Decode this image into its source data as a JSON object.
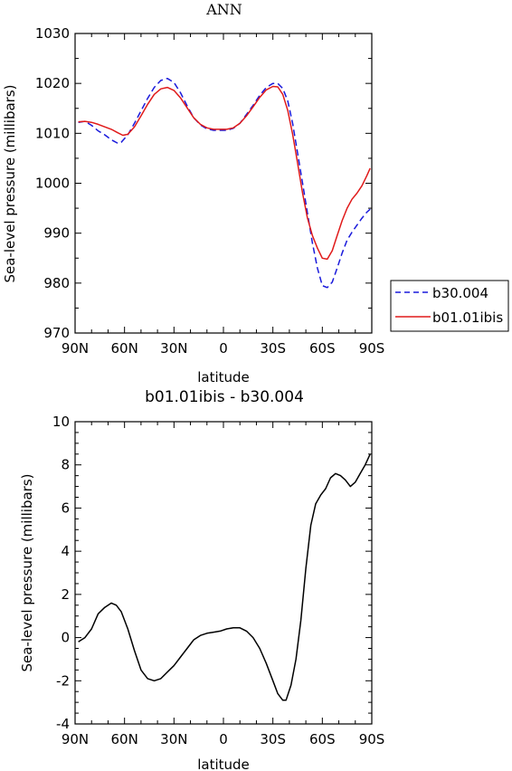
{
  "chart_data": [
    {
      "type": "line",
      "title": "ANN",
      "xlabel": "latitude",
      "ylabel": "Sea-level pressure (millibars)",
      "xlim": [
        90,
        -90
      ],
      "ylim": [
        970,
        1030
      ],
      "x_ticks": [
        90,
        60,
        30,
        0,
        -30,
        -60,
        -90
      ],
      "x_tick_labels": [
        "90N",
        "60N",
        "30N",
        "0",
        "30S",
        "60S",
        "90S"
      ],
      "y_ticks": [
        970,
        980,
        990,
        1000,
        1010,
        1020,
        1030
      ],
      "y_tick_labels": [
        "970",
        "980",
        "990",
        "1000",
        "1010",
        "1020",
        "1030"
      ],
      "legend_position": "right",
      "series": [
        {
          "name": "b30.004",
          "color": "#1a1adb",
          "dash": "dashed",
          "points": [
            [
              88,
              1012.2
            ],
            [
              84,
              1012.4
            ],
            [
              80,
              1011.6
            ],
            [
              76,
              1010.5
            ],
            [
              72,
              1009.7
            ],
            [
              68,
              1008.7
            ],
            [
              64,
              1008.0
            ],
            [
              62,
              1008.2
            ],
            [
              58,
              1009.7
            ],
            [
              54,
              1012.0
            ],
            [
              50,
              1014.5
            ],
            [
              46,
              1017.0
            ],
            [
              42,
              1019.2
            ],
            [
              38,
              1020.6
            ],
            [
              34,
              1021.0
            ],
            [
              30,
              1020.2
            ],
            [
              26,
              1018.1
            ],
            [
              22,
              1015.5
            ],
            [
              18,
              1013.1
            ],
            [
              14,
              1011.7
            ],
            [
              10,
              1010.9
            ],
            [
              6,
              1010.6
            ],
            [
              2,
              1010.6
            ],
            [
              -2,
              1010.6
            ],
            [
              -6,
              1011.0
            ],
            [
              -10,
              1012.0
            ],
            [
              -14,
              1013.8
            ],
            [
              -18,
              1015.6
            ],
            [
              -22,
              1017.6
            ],
            [
              -26,
              1019.2
            ],
            [
              -30,
              1020.0
            ],
            [
              -33,
              1020.0
            ],
            [
              -36,
              1019.0
            ],
            [
              -39,
              1016.5
            ],
            [
              -42,
              1012.0
            ],
            [
              -45,
              1006.0
            ],
            [
              -48,
              1000.0
            ],
            [
              -51,
              994.0
            ],
            [
              -54,
              988.0
            ],
            [
              -57,
              983.0
            ],
            [
              -60,
              979.5
            ],
            [
              -63,
              979.1
            ],
            [
              -66,
              980.2
            ],
            [
              -69,
              983.0
            ],
            [
              -72,
              986.0
            ],
            [
              -75,
              988.6
            ],
            [
              -78,
              990.2
            ],
            [
              -81,
              991.6
            ],
            [
              -84,
              993.0
            ],
            [
              -87,
              994.2
            ],
            [
              -89,
              994.8
            ]
          ]
        },
        {
          "name": "b01.01ibis",
          "color": "#e01a1a",
          "dash": "solid",
          "points": [
            [
              88,
              1012.3
            ],
            [
              84,
              1012.4
            ],
            [
              80,
              1012.2
            ],
            [
              76,
              1011.8
            ],
            [
              72,
              1011.3
            ],
            [
              68,
              1010.8
            ],
            [
              64,
              1010.1
            ],
            [
              61,
              1009.6
            ],
            [
              58,
              1009.8
            ],
            [
              54,
              1011.3
            ],
            [
              50,
              1013.5
            ],
            [
              46,
              1015.8
            ],
            [
              42,
              1017.8
            ],
            [
              38,
              1018.9
            ],
            [
              34,
              1019.2
            ],
            [
              30,
              1018.6
            ],
            [
              26,
              1017.1
            ],
            [
              22,
              1015.1
            ],
            [
              18,
              1013.1
            ],
            [
              14,
              1011.8
            ],
            [
              10,
              1011.1
            ],
            [
              6,
              1010.8
            ],
            [
              2,
              1010.8
            ],
            [
              -2,
              1010.8
            ],
            [
              -6,
              1011.1
            ],
            [
              -10,
              1012.0
            ],
            [
              -14,
              1013.5
            ],
            [
              -18,
              1015.3
            ],
            [
              -22,
              1017.2
            ],
            [
              -26,
              1018.7
            ],
            [
              -30,
              1019.4
            ],
            [
              -33,
              1019.3
            ],
            [
              -36,
              1017.8
            ],
            [
              -39,
              1014.6
            ],
            [
              -42,
              1009.8
            ],
            [
              -45,
              1004.0
            ],
            [
              -48,
              998.0
            ],
            [
              -51,
              993.0
            ],
            [
              -54,
              989.5
            ],
            [
              -57,
              987.0
            ],
            [
              -60,
              985.0
            ],
            [
              -63,
              984.8
            ],
            [
              -66,
              986.5
            ],
            [
              -69,
              989.5
            ],
            [
              -72,
              992.5
            ],
            [
              -75,
              995.0
            ],
            [
              -78,
              996.8
            ],
            [
              -81,
              998.0
            ],
            [
              -84,
              999.5
            ],
            [
              -87,
              1001.5
            ],
            [
              -89,
              1003.0
            ]
          ]
        }
      ]
    },
    {
      "type": "line",
      "title": "b01.01ibis - b30.004",
      "xlabel": "latitude",
      "ylabel": "Sea-level pressure (millibars)",
      "xlim": [
        90,
        -90
      ],
      "ylim": [
        -4,
        10
      ],
      "x_ticks": [
        90,
        60,
        30,
        0,
        -30,
        -60,
        -90
      ],
      "x_tick_labels": [
        "90N",
        "60N",
        "30N",
        "0",
        "30S",
        "60S",
        "90S"
      ],
      "y_ticks": [
        -4,
        -2,
        0,
        2,
        4,
        6,
        8,
        10
      ],
      "y_tick_labels": [
        "-4",
        "-2",
        "0",
        "2",
        "4",
        "6",
        "8",
        "10"
      ],
      "series": [
        {
          "color": "#000000",
          "dash": "solid",
          "points": [
            [
              88,
              -0.2
            ],
            [
              84,
              0.0
            ],
            [
              80,
              0.4
            ],
            [
              76,
              1.1
            ],
            [
              72,
              1.4
            ],
            [
              68,
              1.6
            ],
            [
              65,
              1.5
            ],
            [
              62,
              1.2
            ],
            [
              58,
              0.4
            ],
            [
              54,
              -0.6
            ],
            [
              50,
              -1.5
            ],
            [
              46,
              -1.9
            ],
            [
              42,
              -2.0
            ],
            [
              38,
              -1.9
            ],
            [
              34,
              -1.6
            ],
            [
              30,
              -1.3
            ],
            [
              26,
              -0.9
            ],
            [
              22,
              -0.5
            ],
            [
              18,
              -0.1
            ],
            [
              14,
              0.1
            ],
            [
              10,
              0.2
            ],
            [
              6,
              0.25
            ],
            [
              2,
              0.3
            ],
            [
              -2,
              0.4
            ],
            [
              -6,
              0.45
            ],
            [
              -10,
              0.45
            ],
            [
              -14,
              0.3
            ],
            [
              -18,
              0.0
            ],
            [
              -22,
              -0.5
            ],
            [
              -26,
              -1.2
            ],
            [
              -30,
              -2.0
            ],
            [
              -33,
              -2.6
            ],
            [
              -36,
              -2.9
            ],
            [
              -38,
              -2.9
            ],
            [
              -41,
              -2.2
            ],
            [
              -44,
              -1.0
            ],
            [
              -47,
              0.8
            ],
            [
              -50,
              3.2
            ],
            [
              -53,
              5.2
            ],
            [
              -56,
              6.2
            ],
            [
              -59,
              6.6
            ],
            [
              -62,
              6.9
            ],
            [
              -65,
              7.4
            ],
            [
              -68,
              7.6
            ],
            [
              -71,
              7.5
            ],
            [
              -74,
              7.3
            ],
            [
              -77,
              7.0
            ],
            [
              -80,
              7.2
            ],
            [
              -83,
              7.6
            ],
            [
              -86,
              8.0
            ],
            [
              -89,
              8.5
            ]
          ]
        }
      ]
    }
  ]
}
